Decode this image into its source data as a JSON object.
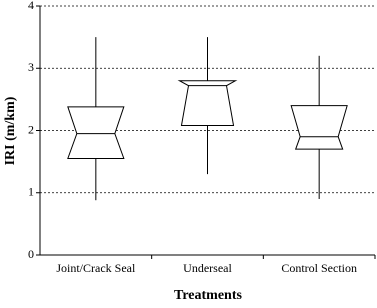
{
  "chart_data": {
    "type": "boxplot",
    "xlabel": "Treatments",
    "ylabel": "IRI (m/km)",
    "categories": [
      "Joint/Crack Seal",
      "Underseal",
      "Control Section"
    ],
    "whisker_low": [
      0.88,
      1.3,
      0.9
    ],
    "q1": [
      1.55,
      2.08,
      1.7
    ],
    "median": [
      1.95,
      2.72,
      1.9
    ],
    "q3": [
      2.38,
      2.8,
      2.4
    ],
    "whisker_high": [
      3.5,
      3.5,
      3.2
    ],
    "notch_low": [
      1.55,
      1.9,
      1.5
    ],
    "notch_high": [
      2.38,
      2.8,
      2.4
    ],
    "color": "#000000",
    "ylim": [
      0,
      4
    ],
    "yticks": [
      0,
      1,
      2,
      3,
      4
    ],
    "grid": true
  }
}
